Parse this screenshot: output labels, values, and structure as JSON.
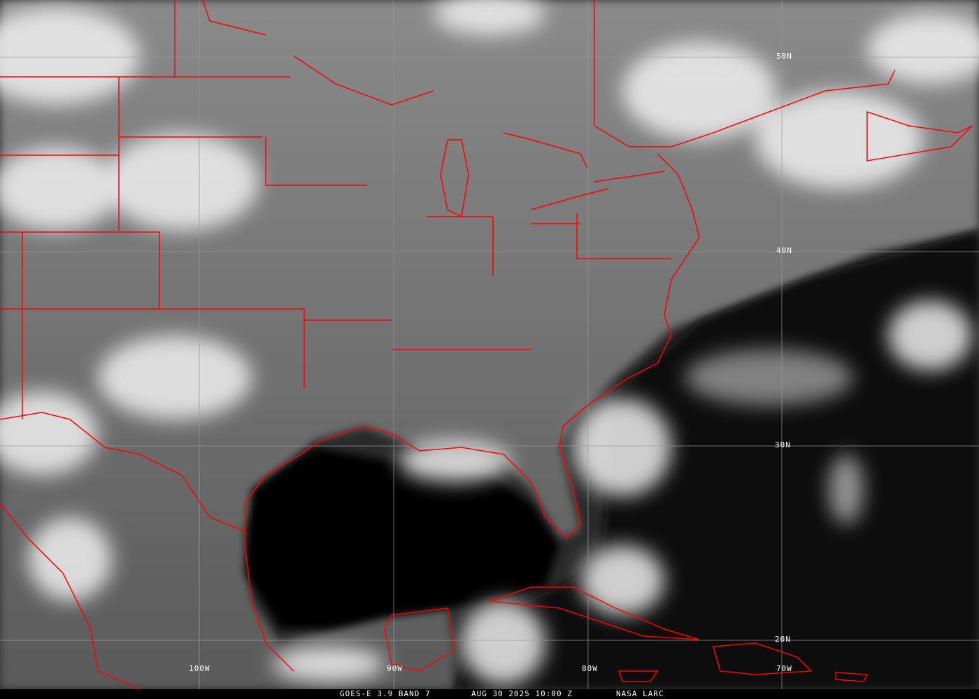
{
  "footer": {
    "product": "GOES-E 3.9 BAND 7",
    "datetime": "AUG 30 2025 10:00 Z",
    "source": "NASA LARC"
  },
  "latitude_labels": [
    "50N",
    "40N",
    "30N",
    "20N"
  ],
  "longitude_labels": [
    "100W",
    "90W",
    "80W",
    "70W"
  ],
  "colors": {
    "boundaries": "#ff0000",
    "grid": "#9a9a9a"
  }
}
